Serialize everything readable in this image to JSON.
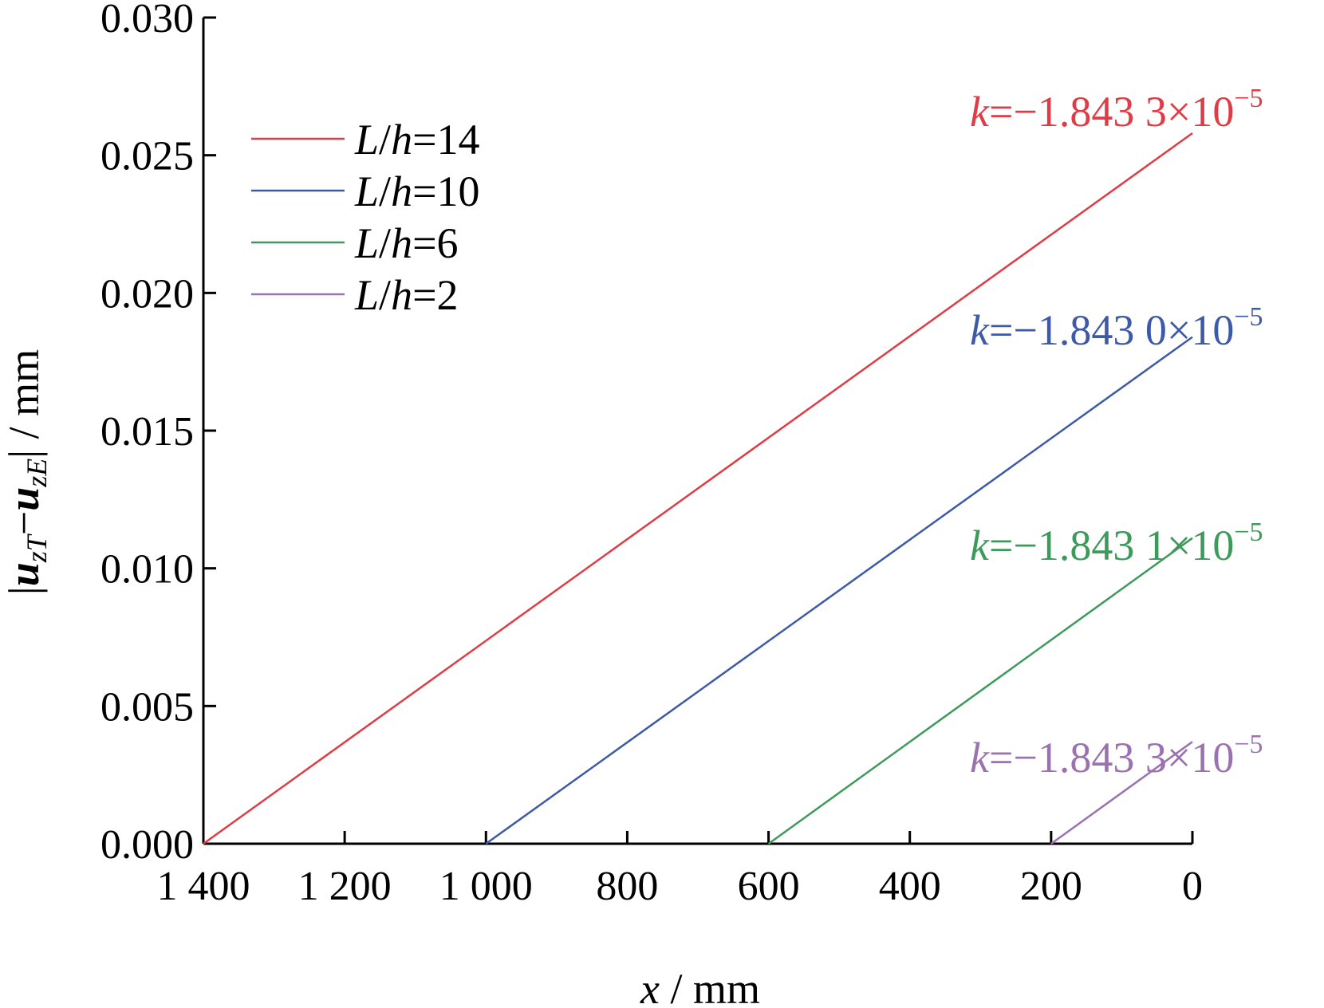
{
  "chart_data": {
    "type": "line",
    "xlabel": {
      "var": "x",
      "rest": " / mm"
    },
    "ylabel": {
      "open": "|",
      "u1": "u",
      "sub1": "zT",
      "minus": "−",
      "u2": "u",
      "sub2": "zE",
      "close": "|",
      "rest": " / mm"
    },
    "xlim": [
      1400,
      0
    ],
    "ylim": [
      0,
      0.03
    ],
    "x_ticks": [
      1400,
      1200,
      1000,
      800,
      600,
      400,
      200,
      0
    ],
    "x_tick_labels": [
      "1 400",
      "1 200",
      "1 000",
      "800",
      "600",
      "400",
      "200",
      "0"
    ],
    "y_ticks": [
      0.0,
      0.005,
      0.01,
      0.015,
      0.02,
      0.025,
      0.03
    ],
    "y_tick_labels": [
      "0.000",
      "0.005",
      "0.010",
      "0.015",
      "0.020",
      "0.025",
      "0.030"
    ],
    "grid": false,
    "legend_position": "top-left",
    "series": [
      {
        "name": "L/h=14",
        "legend_var": "L",
        "legend_sep": "/",
        "legend_var2": "h",
        "legend_val": "=14",
        "color": "#e03c46",
        "x": [
          1400,
          0
        ],
        "y": [
          0.0,
          0.0258
        ],
        "annotation": {
          "k": "k",
          "text": "=−1.843 3×10",
          "exp": "−5"
        }
      },
      {
        "name": "L/h=10",
        "legend_var": "L",
        "legend_sep": "/",
        "legend_var2": "h",
        "legend_val": "=10",
        "color": "#3d5aa8",
        "x": [
          1000,
          0
        ],
        "y": [
          0.0,
          0.0184
        ],
        "annotation": {
          "k": "k",
          "text": "=−1.843 0×10",
          "exp": "−5"
        }
      },
      {
        "name": "L/h=6",
        "legend_var": "L",
        "legend_sep": "/",
        "legend_var2": "h",
        "legend_val": "=6",
        "color": "#3c9a5a",
        "x": [
          600,
          0
        ],
        "y": [
          0.0,
          0.0111
        ],
        "annotation": {
          "k": "k",
          "text": "=−1.843 1×10",
          "exp": "−5"
        }
      },
      {
        "name": "L/h=2",
        "legend_var": "L",
        "legend_sep": "/",
        "legend_var2": "h",
        "legend_val": "=2",
        "color": "#9b72b0",
        "x": [
          200,
          0
        ],
        "y": [
          0.0,
          0.0037
        ],
        "annotation": {
          "k": "k",
          "text": "=−1.843 3×10",
          "exp": "−5"
        }
      }
    ]
  }
}
